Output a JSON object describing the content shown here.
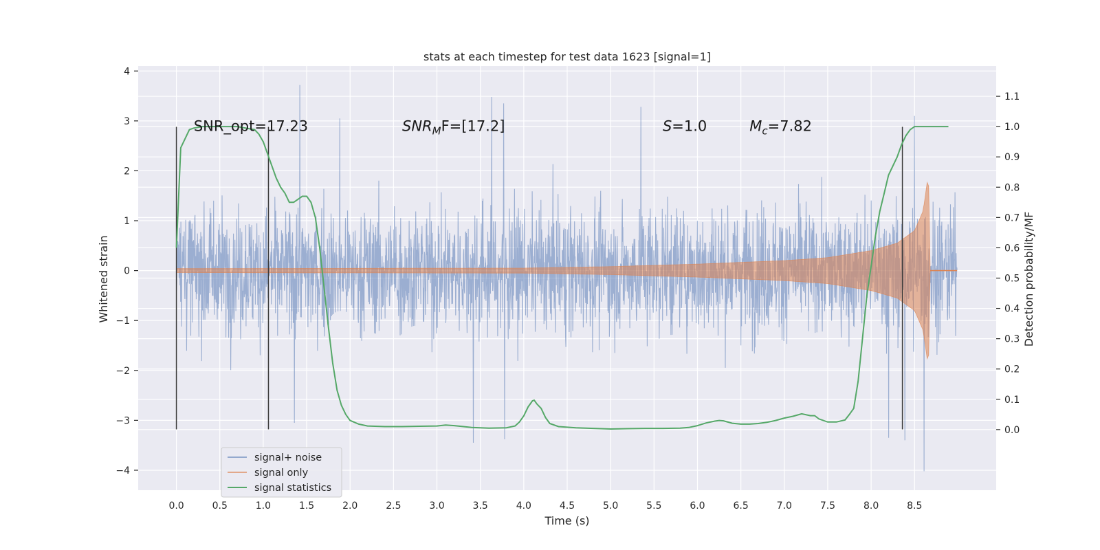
{
  "chart_data": {
    "type": "line",
    "title": "stats at each timestep for test data 1623 [signal=1]",
    "xlabel": "Time (s)",
    "ylabel": "Whitened strain",
    "ylabel_right": "Detection probability/MF",
    "xlim": [
      -0.44,
      9.44
    ],
    "ylim": [
      -4.4,
      4.1
    ],
    "ylim_right": [
      -0.2,
      1.2
    ],
    "xticks": [
      0.0,
      0.5,
      1.0,
      1.5,
      2.0,
      2.5,
      3.0,
      3.5,
      4.0,
      4.5,
      5.0,
      5.5,
      6.0,
      6.5,
      7.0,
      7.5,
      8.0,
      8.5
    ],
    "xtick_labels": [
      "0.0",
      "0.5",
      "1.0",
      "1.5",
      "2.0",
      "2.5",
      "3.0",
      "3.5",
      "4.0",
      "4.5",
      "5.0",
      "5.5",
      "6.0",
      "6.5",
      "7.0",
      "7.5",
      "8.0",
      "8.5"
    ],
    "yticks": [
      -4,
      -3,
      -2,
      -1,
      0,
      1,
      2,
      3,
      4
    ],
    "ytick_labels": [
      "−4",
      "−3",
      "−2",
      "−1",
      "0",
      "1",
      "2",
      "3",
      "4"
    ],
    "yticks_right": [
      0.0,
      0.1,
      0.2,
      0.3,
      0.4,
      0.5,
      0.6,
      0.7,
      0.8,
      0.9,
      1.0,
      1.1
    ],
    "ytick_labels_right": [
      "0.0",
      "0.1",
      "0.2",
      "0.3",
      "0.4",
      "0.5",
      "0.6",
      "0.7",
      "0.8",
      "0.9",
      "1.0",
      "1.1"
    ],
    "grid": true,
    "legend_position": "lower-left",
    "series": [
      {
        "name": "signal+ noise",
        "color": "#4c72b0",
        "style": "dense noisy strain trace, amplitude roughly ±2.1 with spikes to ±3.5",
        "x_range": [
          0.0,
          8.99
        ],
        "envelope": {
          "x": [
            0.0,
            8.99
          ],
          "y": [
            -2.1,
            2.1
          ]
        },
        "spikes": [
          {
            "x": 1.42,
            "y": 3.72
          },
          {
            "x": 3.77,
            "y": 3.35
          },
          {
            "x": 3.63,
            "y": 3.48
          },
          {
            "x": 5.35,
            "y": 3.28
          },
          {
            "x": 8.5,
            "y": 3.1
          },
          {
            "x": 1.88,
            "y": 3.05
          },
          {
            "x": 3.42,
            "y": -3.45
          },
          {
            "x": 3.78,
            "y": -3.38
          },
          {
            "x": 8.61,
            "y": -4.02
          },
          {
            "x": 1.36,
            "y": -3.05
          },
          {
            "x": 8.2,
            "y": -3.35
          },
          {
            "x": 8.39,
            "y": -3.4
          }
        ]
      },
      {
        "name": "signal only",
        "color": "#dd8452",
        "style": "chirp whose amplitude grows toward merger near t=8.68 s",
        "envelope": [
          [
            0.0,
            0.04
          ],
          [
            4.0,
            0.05
          ],
          [
            5.0,
            0.08
          ],
          [
            6.0,
            0.13
          ],
          [
            7.0,
            0.2
          ],
          [
            7.5,
            0.26
          ],
          [
            8.0,
            0.4
          ],
          [
            8.3,
            0.55
          ],
          [
            8.5,
            0.8
          ],
          [
            8.6,
            1.2
          ],
          [
            8.66,
            1.95
          ],
          [
            8.68,
            0.02
          ],
          [
            8.99,
            0.02
          ]
        ]
      },
      {
        "name": "signal statistics",
        "color": "#55a868",
        "axis": "right",
        "x": [
          0.0,
          0.05,
          0.1,
          0.15,
          0.2,
          0.3,
          0.5,
          0.7,
          0.8,
          0.9,
          0.95,
          1.0,
          1.05,
          1.1,
          1.15,
          1.2,
          1.25,
          1.3,
          1.35,
          1.4,
          1.45,
          1.5,
          1.55,
          1.6,
          1.65,
          1.7,
          1.75,
          1.8,
          1.85,
          1.9,
          1.95,
          2.0,
          2.1,
          2.2,
          2.4,
          2.6,
          2.8,
          3.0,
          3.1,
          3.2,
          3.4,
          3.6,
          3.8,
          3.9,
          3.95,
          4.0,
          4.05,
          4.1,
          4.12,
          4.15,
          4.2,
          4.25,
          4.3,
          4.4,
          4.6,
          4.8,
          5.0,
          5.2,
          5.4,
          5.6,
          5.8,
          5.9,
          6.0,
          6.1,
          6.2,
          6.25,
          6.3,
          6.4,
          6.5,
          6.6,
          6.7,
          6.8,
          6.9,
          7.0,
          7.1,
          7.2,
          7.3,
          7.35,
          7.4,
          7.5,
          7.6,
          7.7,
          7.75,
          7.8,
          7.85,
          7.9,
          7.95,
          8.0,
          8.05,
          8.1,
          8.15,
          8.2,
          8.25,
          8.3,
          8.35,
          8.4,
          8.45,
          8.5,
          8.55,
          8.6,
          8.7,
          8.8,
          8.89
        ],
        "y": [
          0.6,
          0.93,
          0.96,
          0.99,
          0.995,
          1.0,
          1.0,
          1.0,
          0.995,
          0.99,
          0.975,
          0.95,
          0.91,
          0.87,
          0.83,
          0.8,
          0.78,
          0.75,
          0.75,
          0.76,
          0.77,
          0.77,
          0.75,
          0.7,
          0.6,
          0.47,
          0.34,
          0.22,
          0.13,
          0.08,
          0.05,
          0.03,
          0.018,
          0.012,
          0.01,
          0.01,
          0.011,
          0.012,
          0.015,
          0.013,
          0.007,
          0.005,
          0.006,
          0.012,
          0.025,
          0.045,
          0.075,
          0.095,
          0.097,
          0.085,
          0.07,
          0.04,
          0.02,
          0.01,
          0.006,
          0.004,
          0.002,
          0.003,
          0.004,
          0.004,
          0.005,
          0.007,
          0.013,
          0.022,
          0.028,
          0.03,
          0.029,
          0.021,
          0.018,
          0.018,
          0.02,
          0.024,
          0.03,
          0.038,
          0.044,
          0.052,
          0.046,
          0.046,
          0.035,
          0.025,
          0.025,
          0.032,
          0.05,
          0.07,
          0.16,
          0.3,
          0.44,
          0.54,
          0.64,
          0.72,
          0.78,
          0.84,
          0.87,
          0.9,
          0.94,
          0.97,
          0.99,
          1.0,
          1.0,
          1.0,
          1.0,
          1.0,
          1.0
        ]
      }
    ],
    "vertical_markers": [
      {
        "x": 0.0,
        "y": [
          -3.18,
          2.88
        ]
      },
      {
        "x": 1.06,
        "y": [
          -3.18,
          2.88
        ]
      },
      {
        "x": 8.36,
        "y": [
          -3.18,
          2.88
        ]
      }
    ],
    "annotations": [
      {
        "x": 0.2,
        "y": 2.8,
        "text": "SNR_opt=17.23"
      },
      {
        "x": 2.6,
        "y": 2.8,
        "base": "SNR",
        "sub": "M",
        "tail": "F=[17.2]",
        "italic_base": true
      },
      {
        "x": 5.6,
        "y": 2.8,
        "base": "S",
        "tail": "=1.0",
        "italic_base": true
      },
      {
        "x": 6.6,
        "y": 2.8,
        "base": "M",
        "sub": "c",
        "tail": "=7.82",
        "italic_base": true
      }
    ]
  }
}
